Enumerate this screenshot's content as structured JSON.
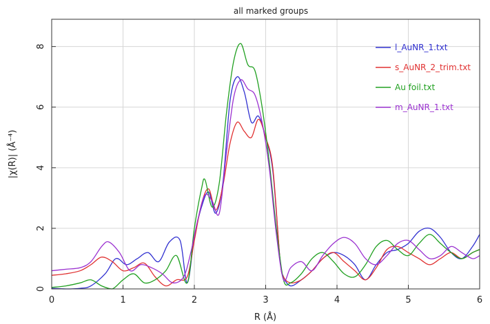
{
  "chart_data": {
    "type": "line",
    "title": "all marked groups",
    "xlabel": "R (Å)",
    "ylabel": "|χ(R)| (Å⁻⁴)",
    "xlim": [
      0,
      6
    ],
    "ylim": [
      0,
      8.9
    ],
    "xticks": [
      0,
      1,
      2,
      3,
      4,
      5,
      6
    ],
    "yticks": [
      0,
      2,
      4,
      6,
      8
    ],
    "grid": true,
    "legend_position": "top-right",
    "series": [
      {
        "name": "l_AuNR_1.txt",
        "color": "#3030d0",
        "x": [
          0,
          0.2,
          0.4,
          0.55,
          0.75,
          0.9,
          1.05,
          1.2,
          1.35,
          1.5,
          1.65,
          1.8,
          1.9,
          2.0,
          2.1,
          2.2,
          2.3,
          2.4,
          2.5,
          2.6,
          2.7,
          2.8,
          2.9,
          3.0,
          3.1,
          3.2,
          3.25,
          3.35,
          3.5,
          3.65,
          3.8,
          3.95,
          4.1,
          4.25,
          4.4,
          4.55,
          4.7,
          4.85,
          5.0,
          5.15,
          5.3,
          5.45,
          5.6,
          5.75,
          5.9,
          6.0
        ],
        "y": [
          0.02,
          0.0,
          0.02,
          0.1,
          0.5,
          1.0,
          0.8,
          1.0,
          1.2,
          0.9,
          1.55,
          1.6,
          0.2,
          1.7,
          2.7,
          3.2,
          2.5,
          3.5,
          6.2,
          7.0,
          6.5,
          5.5,
          5.7,
          5.0,
          3.9,
          1.0,
          0.4,
          0.1,
          0.3,
          0.6,
          1.0,
          1.2,
          1.1,
          0.8,
          0.3,
          0.8,
          1.2,
          1.3,
          1.5,
          1.9,
          2.0,
          1.7,
          1.2,
          1.0,
          1.4,
          1.8
        ]
      },
      {
        "name": "s_AuNR_2_trim.txt",
        "color": "#e03030",
        "x": [
          0,
          0.2,
          0.4,
          0.55,
          0.7,
          0.85,
          1.0,
          1.15,
          1.3,
          1.45,
          1.6,
          1.75,
          1.9,
          2.0,
          2.1,
          2.2,
          2.3,
          2.4,
          2.5,
          2.6,
          2.7,
          2.8,
          2.9,
          3.0,
          3.1,
          3.2,
          3.25,
          3.35,
          3.5,
          3.65,
          3.8,
          3.95,
          4.1,
          4.25,
          4.4,
          4.55,
          4.7,
          4.85,
          5.0,
          5.15,
          5.3,
          5.45,
          5.6,
          5.75,
          5.9,
          6.0
        ],
        "y": [
          0.45,
          0.5,
          0.6,
          0.8,
          1.05,
          0.9,
          0.6,
          0.7,
          0.85,
          0.4,
          0.1,
          0.3,
          0.4,
          1.6,
          2.8,
          3.3,
          2.6,
          3.4,
          4.8,
          5.5,
          5.2,
          5.0,
          5.6,
          5.0,
          4.0,
          1.0,
          0.4,
          0.2,
          0.3,
          0.6,
          1.0,
          1.2,
          0.9,
          0.6,
          0.3,
          0.7,
          1.3,
          1.4,
          1.2,
          1.0,
          0.8,
          1.0,
          1.2,
          1.0,
          1.2,
          1.3
        ]
      },
      {
        "name": "Au foil.txt",
        "color": "#20a020",
        "x": [
          0,
          0.2,
          0.4,
          0.55,
          0.7,
          0.85,
          1.0,
          1.15,
          1.3,
          1.45,
          1.6,
          1.75,
          1.9,
          2.0,
          2.1,
          2.15,
          2.25,
          2.35,
          2.45,
          2.55,
          2.65,
          2.75,
          2.85,
          2.95,
          3.05,
          3.15,
          3.25,
          3.35,
          3.5,
          3.65,
          3.8,
          3.95,
          4.1,
          4.25,
          4.4,
          4.55,
          4.7,
          4.85,
          5.0,
          5.15,
          5.3,
          5.45,
          5.6,
          5.75,
          5.9,
          6.0
        ],
        "y": [
          0.05,
          0.1,
          0.2,
          0.3,
          0.1,
          0.0,
          0.3,
          0.5,
          0.2,
          0.3,
          0.6,
          1.1,
          0.2,
          2.0,
          3.3,
          3.6,
          2.7,
          3.5,
          5.8,
          7.5,
          8.1,
          7.4,
          7.2,
          6.0,
          4.2,
          2.0,
          0.3,
          0.2,
          0.5,
          1.0,
          1.2,
          0.9,
          0.5,
          0.4,
          0.8,
          1.4,
          1.6,
          1.3,
          1.1,
          1.5,
          1.8,
          1.5,
          1.2,
          1.0,
          1.2,
          1.3
        ]
      },
      {
        "name": "m_AuNR_1.txt",
        "color": "#9a30d0",
        "x": [
          0,
          0.2,
          0.4,
          0.55,
          0.7,
          0.8,
          0.95,
          1.1,
          1.25,
          1.4,
          1.55,
          1.7,
          1.85,
          1.95,
          2.05,
          2.15,
          2.25,
          2.35,
          2.45,
          2.55,
          2.65,
          2.75,
          2.85,
          2.95,
          3.05,
          3.15,
          3.25,
          3.35,
          3.5,
          3.65,
          3.8,
          3.95,
          4.1,
          4.25,
          4.4,
          4.55,
          4.7,
          4.85,
          5.0,
          5.15,
          5.3,
          5.45,
          5.6,
          5.75,
          5.9,
          6.0
        ],
        "y": [
          0.6,
          0.65,
          0.7,
          0.9,
          1.4,
          1.55,
          1.2,
          0.6,
          0.8,
          0.7,
          0.5,
          0.2,
          0.4,
          1.2,
          2.3,
          3.1,
          2.9,
          2.5,
          4.5,
          6.3,
          6.9,
          6.6,
          6.4,
          5.5,
          4.0,
          1.8,
          0.3,
          0.7,
          0.9,
          0.6,
          1.1,
          1.5,
          1.7,
          1.5,
          1.0,
          0.8,
          1.1,
          1.5,
          1.6,
          1.3,
          1.0,
          1.1,
          1.4,
          1.2,
          1.0,
          1.1
        ]
      }
    ]
  }
}
